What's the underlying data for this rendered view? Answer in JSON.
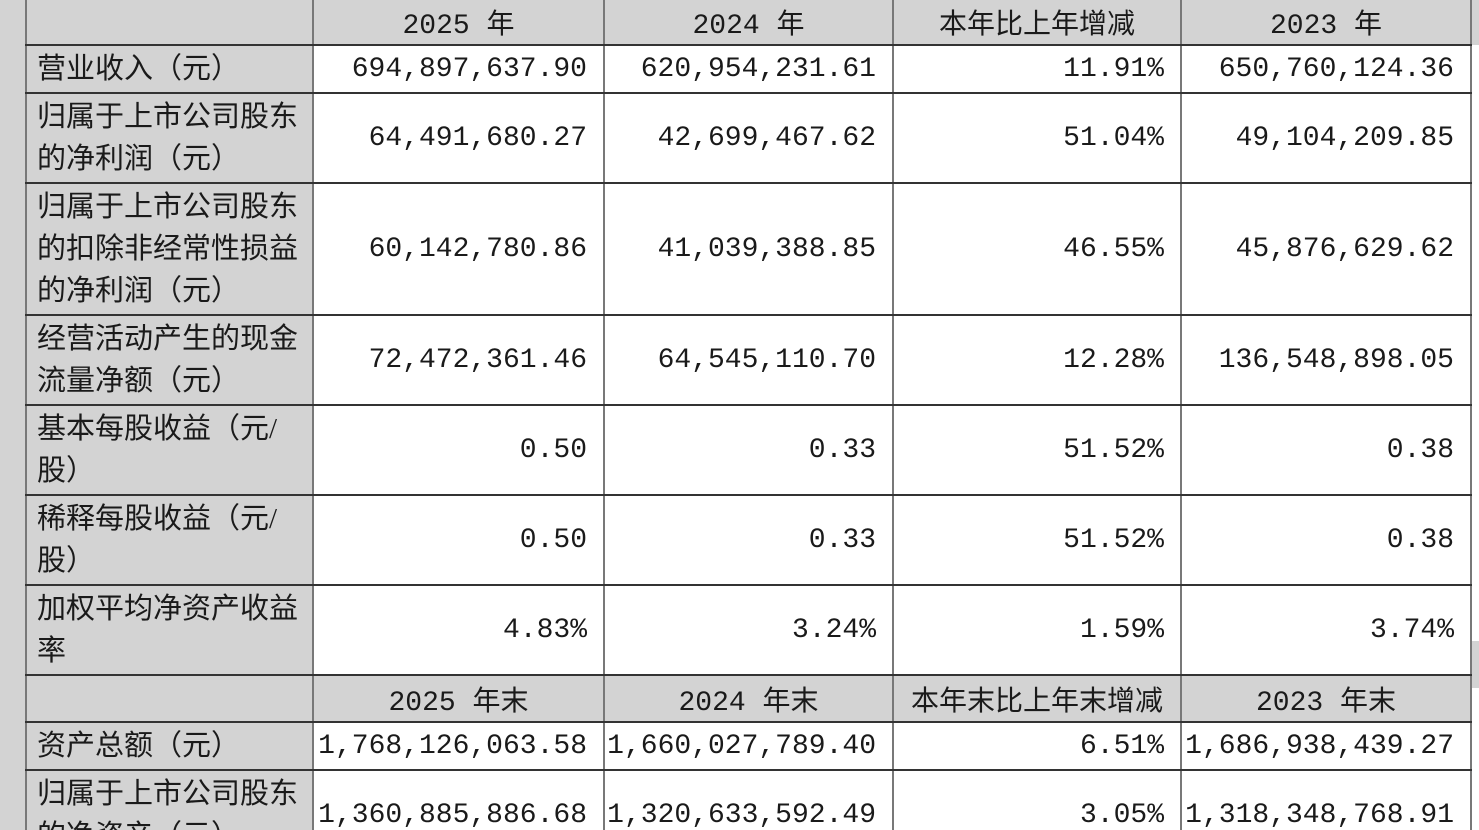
{
  "colors": {
    "header_fill": "#d3d3d3",
    "grid_horizontal": "#333333",
    "grid_vertical": "#787878",
    "outer_bottom_border": "#141414",
    "text": "#1a1a1a"
  },
  "table": {
    "sections": [
      {
        "header": [
          "",
          "2025 年",
          "2024 年",
          "本年比上年增减",
          "2023 年"
        ],
        "rows": [
          {
            "label": "营业收入（元）",
            "values": [
              "694,897,637.90",
              "620,954,231.61",
              "11.91%",
              "650,760,124.36"
            ]
          },
          {
            "label": "归属于上市公司股东的净利润（元）",
            "values": [
              "64,491,680.27",
              "42,699,467.62",
              "51.04%",
              "49,104,209.85"
            ]
          },
          {
            "label": "归属于上市公司股东的扣除非经常性损益的净利润（元）",
            "values": [
              "60,142,780.86",
              "41,039,388.85",
              "46.55%",
              "45,876,629.62"
            ]
          },
          {
            "label": "经营活动产生的现金流量净额（元）",
            "values": [
              "72,472,361.46",
              "64,545,110.70",
              "12.28%",
              "136,548,898.05"
            ]
          },
          {
            "label": "基本每股收益（元/股）",
            "values": [
              "0.50",
              "0.33",
              "51.52%",
              "0.38"
            ]
          },
          {
            "label": "稀释每股收益（元/股）",
            "values": [
              "0.50",
              "0.33",
              "51.52%",
              "0.38"
            ]
          },
          {
            "label": "加权平均净资产收益率",
            "values": [
              "4.83%",
              "3.24%",
              "1.59%",
              "3.74%"
            ]
          }
        ]
      },
      {
        "header": [
          "",
          "2025 年末",
          "2024 年末",
          "本年末比上年末增减",
          "2023 年末"
        ],
        "rows": [
          {
            "label": "资产总额（元）",
            "values": [
              "1,768,126,063.58",
              "1,660,027,789.40",
              "6.51%",
              "1,686,938,439.27"
            ]
          },
          {
            "label": "归属于上市公司股东的净资产（元）",
            "values": [
              "1,360,885,886.68",
              "1,320,633,592.49",
              "3.05%",
              "1,318,348,768.91"
            ]
          }
        ]
      }
    ]
  }
}
